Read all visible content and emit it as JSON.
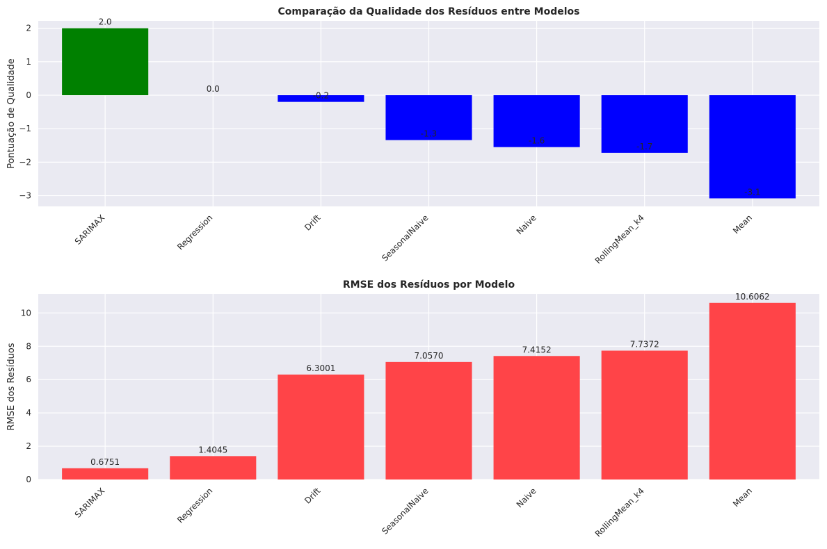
{
  "chart_data": [
    {
      "type": "bar",
      "title": "Comparação da Qualidade dos Resíduos entre Modelos",
      "xlabel": "",
      "ylabel": "Pontuação de Qualidade",
      "categories": [
        "SARIMAX",
        "Regression",
        "Drift",
        "SeasonalNaive",
        "Naive",
        "RollingMean_k4",
        "Mean"
      ],
      "values": [
        2.0,
        0.0,
        -0.2,
        -1.34,
        -1.55,
        -1.72,
        -3.08
      ],
      "value_labels": [
        "2.0",
        "0.0",
        "-0.2",
        "-1.3",
        "-1.6",
        "-1.7",
        "-3.1"
      ],
      "bar_colors": [
        "#008000",
        "#0000ff",
        "#0000ff",
        "#0000ff",
        "#0000ff",
        "#0000ff",
        "#0000ff"
      ],
      "ylim": [
        -3.32,
        2.22
      ],
      "yticks": [
        -3,
        -2,
        -1,
        0,
        1,
        2
      ],
      "ytick_labels": [
        "−3",
        "−2",
        "−1",
        "0",
        "1",
        "2"
      ],
      "grid": true
    },
    {
      "type": "bar",
      "title": "RMSE dos Resíduos por Modelo",
      "xlabel": "",
      "ylabel": "RMSE dos Resíduos",
      "categories": [
        "SARIMAX",
        "Regression",
        "Drift",
        "SeasonalNaive",
        "Naive",
        "RollingMean_k4",
        "Mean"
      ],
      "values": [
        0.6751,
        1.4045,
        6.3001,
        7.057,
        7.4152,
        7.7372,
        10.6062
      ],
      "value_labels": [
        "0.6751",
        "1.4045",
        "6.3001",
        "7.0570",
        "7.4152",
        "7.7372",
        "10.6062"
      ],
      "bar_colors": [
        "#ff4448",
        "#ff4448",
        "#ff4448",
        "#ff4448",
        "#ff4448",
        "#ff4448",
        "#ff4448"
      ],
      "ylim": [
        0,
        11.14
      ],
      "yticks": [
        0,
        2,
        4,
        6,
        8,
        10
      ],
      "ytick_labels": [
        "0",
        "2",
        "4",
        "6",
        "8",
        "10"
      ],
      "grid": true
    }
  ],
  "colors": {
    "plot_background": "#eaeaf2",
    "grid": "#ffffff",
    "text": "#262626"
  }
}
